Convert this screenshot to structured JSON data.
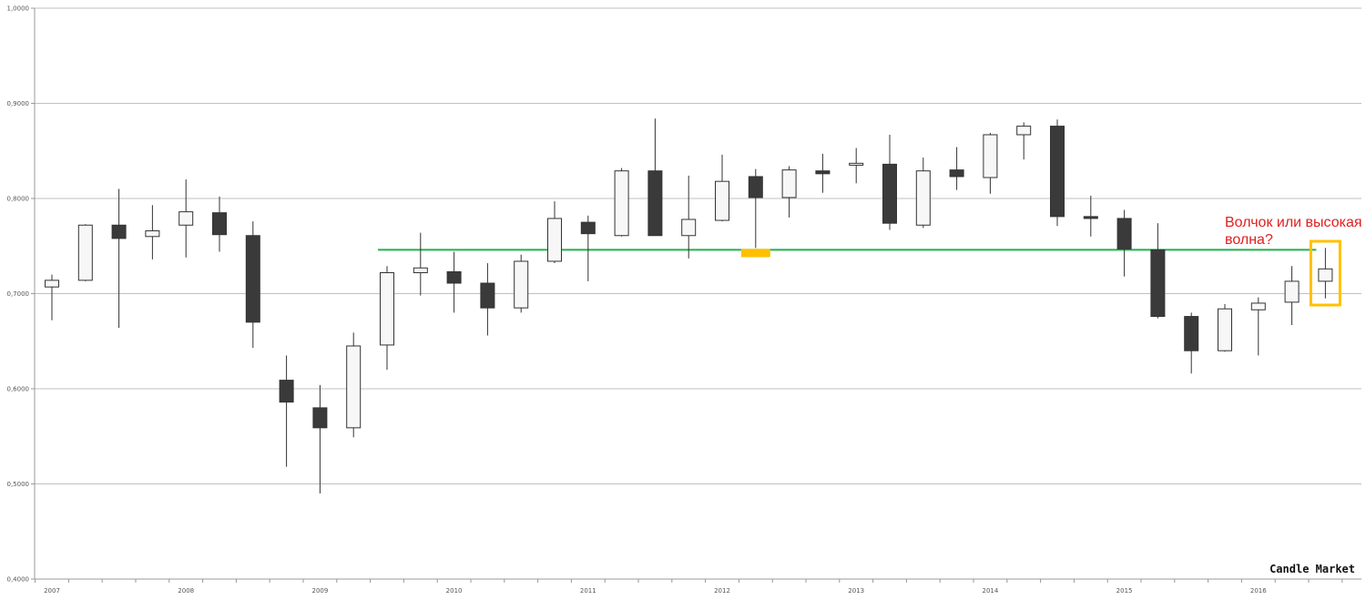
{
  "chart_data": {
    "type": "candlestick",
    "title": "",
    "xlabel": "",
    "ylabel": "",
    "ylim": [
      0.4,
      1.0
    ],
    "y_ticks": [
      "0,4000",
      "0,5000",
      "0,6000",
      "0,7000",
      "0,8000",
      "0,9000",
      "1,0000"
    ],
    "x_year_labels": [
      "2007",
      "2008",
      "2009",
      "2010",
      "2011",
      "2012",
      "2013",
      "2014",
      "2015",
      "2016"
    ],
    "grid": "horizontal",
    "colors": {
      "up_fill": "#f7f7f7",
      "down_fill": "#3a3a3a",
      "outline": "#333333",
      "grid": "#c0c0c0",
      "level_line": "#22b14c",
      "marker": "#ffc000",
      "annotation": "#e02020"
    },
    "candles": [
      {
        "year": "2007",
        "q": 1,
        "open": 0.707,
        "high": 0.72,
        "low": 0.672,
        "close": 0.714
      },
      {
        "year": "2007",
        "q": 2,
        "open": 0.714,
        "high": 0.773,
        "low": 0.713,
        "close": 0.772
      },
      {
        "year": "2007",
        "q": 3,
        "open": 0.772,
        "high": 0.81,
        "low": 0.664,
        "close": 0.758
      },
      {
        "year": "2007",
        "q": 4,
        "open": 0.76,
        "high": 0.793,
        "low": 0.736,
        "close": 0.766
      },
      {
        "year": "2008",
        "q": 1,
        "open": 0.772,
        "high": 0.82,
        "low": 0.738,
        "close": 0.786
      },
      {
        "year": "2008",
        "q": 2,
        "open": 0.785,
        "high": 0.802,
        "low": 0.744,
        "close": 0.762
      },
      {
        "year": "2008",
        "q": 3,
        "open": 0.761,
        "high": 0.776,
        "low": 0.643,
        "close": 0.67
      },
      {
        "year": "2008",
        "q": 4,
        "open": 0.609,
        "high": 0.635,
        "low": 0.518,
        "close": 0.586
      },
      {
        "year": "2009",
        "q": 1,
        "open": 0.58,
        "high": 0.604,
        "low": 0.49,
        "close": 0.559
      },
      {
        "year": "2009",
        "q": 2,
        "open": 0.559,
        "high": 0.659,
        "low": 0.549,
        "close": 0.645
      },
      {
        "year": "2009",
        "q": 3,
        "open": 0.646,
        "high": 0.729,
        "low": 0.62,
        "close": 0.722
      },
      {
        "year": "2009",
        "q": 4,
        "open": 0.722,
        "high": 0.764,
        "low": 0.698,
        "close": 0.727
      },
      {
        "year": "2010",
        "q": 1,
        "open": 0.723,
        "high": 0.744,
        "low": 0.68,
        "close": 0.711
      },
      {
        "year": "2010",
        "q": 2,
        "open": 0.711,
        "high": 0.732,
        "low": 0.656,
        "close": 0.685
      },
      {
        "year": "2010",
        "q": 3,
        "open": 0.685,
        "high": 0.741,
        "low": 0.68,
        "close": 0.734
      },
      {
        "year": "2010",
        "q": 4,
        "open": 0.734,
        "high": 0.797,
        "low": 0.732,
        "close": 0.779
      },
      {
        "year": "2011",
        "q": 1,
        "open": 0.775,
        "high": 0.782,
        "low": 0.713,
        "close": 0.763
      },
      {
        "year": "2011",
        "q": 2,
        "open": 0.761,
        "high": 0.832,
        "low": 0.76,
        "close": 0.829
      },
      {
        "year": "2011",
        "q": 3,
        "open": 0.829,
        "high": 0.884,
        "low": 0.761,
        "close": 0.761
      },
      {
        "year": "2011",
        "q": 4,
        "open": 0.761,
        "high": 0.824,
        "low": 0.737,
        "close": 0.778
      },
      {
        "year": "2012",
        "q": 1,
        "open": 0.777,
        "high": 0.846,
        "low": 0.776,
        "close": 0.818
      },
      {
        "year": "2012",
        "q": 2,
        "open": 0.823,
        "high": 0.831,
        "low": 0.748,
        "close": 0.801
      },
      {
        "year": "2012",
        "q": 3,
        "open": 0.801,
        "high": 0.834,
        "low": 0.78,
        "close": 0.83
      },
      {
        "year": "2012",
        "q": 4,
        "open": 0.829,
        "high": 0.847,
        "low": 0.806,
        "close": 0.826
      },
      {
        "year": "2013",
        "q": 1,
        "open": 0.835,
        "high": 0.853,
        "low": 0.816,
        "close": 0.837
      },
      {
        "year": "2013",
        "q": 2,
        "open": 0.836,
        "high": 0.867,
        "low": 0.767,
        "close": 0.774
      },
      {
        "year": "2013",
        "q": 3,
        "open": 0.772,
        "high": 0.843,
        "low": 0.769,
        "close": 0.829
      },
      {
        "year": "2013",
        "q": 4,
        "open": 0.83,
        "high": 0.854,
        "low": 0.809,
        "close": 0.823
      },
      {
        "year": "2014",
        "q": 1,
        "open": 0.822,
        "high": 0.869,
        "low": 0.805,
        "close": 0.867
      },
      {
        "year": "2014",
        "q": 2,
        "open": 0.867,
        "high": 0.88,
        "low": 0.841,
        "close": 0.876
      },
      {
        "year": "2014",
        "q": 3,
        "open": 0.876,
        "high": 0.883,
        "low": 0.771,
        "close": 0.781
      },
      {
        "year": "2014",
        "q": 4,
        "open": 0.781,
        "high": 0.803,
        "low": 0.76,
        "close": 0.779
      },
      {
        "year": "2015",
        "q": 1,
        "open": 0.779,
        "high": 0.788,
        "low": 0.718,
        "close": 0.747
      },
      {
        "year": "2015",
        "q": 2,
        "open": 0.746,
        "high": 0.774,
        "low": 0.674,
        "close": 0.676
      },
      {
        "year": "2015",
        "q": 3,
        "open": 0.676,
        "high": 0.68,
        "low": 0.616,
        "close": 0.64
      },
      {
        "year": "2015",
        "q": 4,
        "open": 0.64,
        "high": 0.689,
        "low": 0.639,
        "close": 0.684
      },
      {
        "year": "2016",
        "q": 1,
        "open": 0.683,
        "high": 0.696,
        "low": 0.635,
        "close": 0.69
      },
      {
        "year": "2016",
        "q": 2,
        "open": 0.691,
        "high": 0.729,
        "low": 0.667,
        "close": 0.713
      },
      {
        "year": "2016",
        "q": 3,
        "open": 0.713,
        "high": 0.748,
        "low": 0.695,
        "close": 0.726
      }
    ],
    "level_line": {
      "value": 0.746,
      "from": {
        "year": "2009",
        "q": 3
      },
      "to": {
        "year": "2016",
        "q": 3
      }
    },
    "marker": {
      "value": 0.745,
      "at": {
        "year": "2012",
        "q": 2
      }
    },
    "highlight": {
      "at": {
        "year": "2016",
        "q": 3
      }
    },
    "annotation": {
      "lines": [
        "Волчок или высокая",
        "волна?"
      ]
    }
  },
  "watermark": "Candle Market"
}
